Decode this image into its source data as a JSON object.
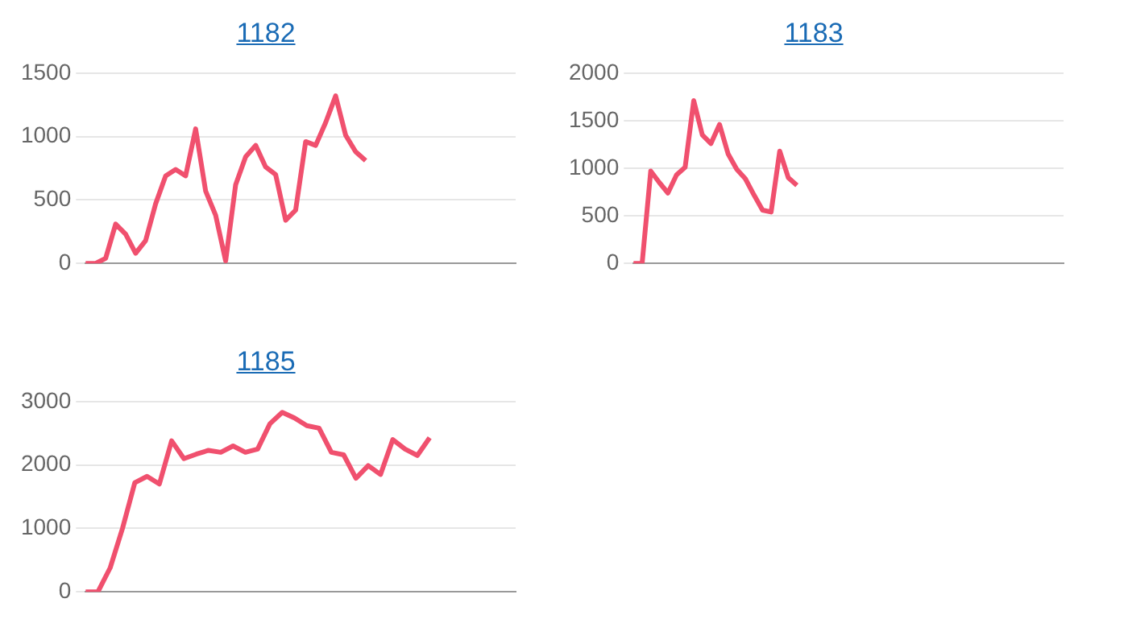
{
  "chart_data": [
    {
      "type": "line",
      "title": "1182",
      "categories": [
        null,
        null,
        null,
        null,
        null,
        null,
        null,
        null,
        null,
        null,
        null,
        null,
        null,
        null,
        null,
        null,
        null,
        null,
        null,
        null,
        null,
        null,
        null,
        null,
        null,
        null,
        null,
        null,
        null,
        null,
        null,
        null,
        null,
        null,
        null,
        null,
        null,
        null,
        null,
        null,
        null,
        null,
        null,
        null
      ],
      "series": [
        {
          "color": "#f0506e",
          "values": [
            0,
            0,
            40,
            310,
            230,
            80,
            180,
            470,
            690,
            740,
            690,
            1060,
            570,
            380,
            20,
            620,
            840,
            930,
            760,
            700,
            340,
            420,
            960,
            930,
            1110,
            1320,
            1010,
            880,
            810,
            null,
            null,
            null,
            null,
            null,
            null,
            null,
            null,
            null,
            null,
            null,
            null,
            null,
            null,
            null
          ]
        }
      ],
      "ylim": [
        0,
        1500
      ],
      "yticks": [
        0,
        500,
        1000,
        1500
      ],
      "grid": "y",
      "marker": "none",
      "legend": false
    },
    {
      "type": "line",
      "title": "1183",
      "categories": [
        null,
        null,
        null,
        null,
        null,
        null,
        null,
        null,
        null,
        null,
        null,
        null,
        null,
        null,
        null,
        null,
        null,
        null,
        null,
        null,
        null,
        null,
        null,
        null,
        null,
        null,
        null,
        null,
        null,
        null,
        null,
        null,
        null,
        null,
        null,
        null,
        null,
        null,
        null,
        null,
        null,
        null,
        null,
        null,
        null,
        null,
        null,
        null,
        null,
        null,
        null
      ],
      "series": [
        {
          "color": "#f0506e",
          "values": [
            0,
            0,
            970,
            850,
            740,
            930,
            1010,
            1710,
            1350,
            1260,
            1460,
            1150,
            990,
            890,
            720,
            560,
            540,
            1180,
            900,
            820,
            null,
            null,
            null,
            null,
            null,
            null,
            null,
            null,
            null,
            null,
            null,
            null,
            null,
            null,
            null,
            null,
            null,
            null,
            null,
            null,
            null,
            null,
            null,
            null,
            null,
            null,
            null,
            null,
            null,
            null,
            null
          ]
        }
      ],
      "ylim": [
        0,
        2000
      ],
      "yticks": [
        0,
        500,
        1000,
        1500,
        2000
      ],
      "grid": "y",
      "marker": "none",
      "legend": false
    },
    {
      "type": "line",
      "title": "1185",
      "categories": [
        null,
        null,
        null,
        null,
        null,
        null,
        null,
        null,
        null,
        null,
        null,
        null,
        null,
        null,
        null,
        null,
        null,
        null,
        null,
        null,
        null,
        null,
        null,
        null,
        null,
        null,
        null,
        null,
        null,
        null,
        null,
        null,
        null,
        null,
        null,
        null
      ],
      "series": [
        {
          "color": "#f0506e",
          "values": [
            0,
            0,
            380,
            1000,
            1720,
            1820,
            1700,
            2380,
            2100,
            2170,
            2230,
            2200,
            2300,
            2200,
            2250,
            2650,
            2830,
            2740,
            2620,
            2580,
            2200,
            2160,
            1790,
            1990,
            1850,
            2400,
            2250,
            2150,
            2430,
            null,
            null,
            null,
            null,
            null,
            null,
            null
          ]
        }
      ],
      "ylim": [
        0,
        3000
      ],
      "yticks": [
        0,
        1000,
        2000,
        3000
      ],
      "grid": "y",
      "marker": "none",
      "legend": false
    }
  ]
}
